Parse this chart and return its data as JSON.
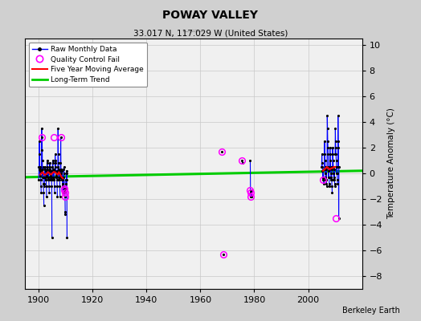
{
  "title": "POWAY VALLEY",
  "subtitle": "33.017 N, 117.029 W (United States)",
  "ylabel": "Temperature Anomaly (°C)",
  "credit": "Berkeley Earth",
  "ylim": [
    -9,
    10.5
  ],
  "xlim": [
    1895,
    2020
  ],
  "xticks": [
    1900,
    1920,
    1940,
    1960,
    1980,
    2000
  ],
  "yticks": [
    -8,
    -6,
    -4,
    -2,
    0,
    2,
    4,
    6,
    8,
    10
  ],
  "bg_color": "#d0d0d0",
  "plot_bg_color": "#f0f0f0",
  "segments_1900s": [
    {
      "x": [
        1900.0,
        1900.083,
        1900.167,
        1900.25,
        1900.333,
        1900.417,
        1900.5,
        1900.583,
        1900.667,
        1900.75,
        1900.833,
        1900.917
      ],
      "y": [
        -0.5,
        0.5,
        0.3,
        2.5,
        1.5,
        0.2,
        -0.2,
        0.3,
        0.5,
        -0.5,
        -1.0,
        -1.5
      ]
    },
    {
      "x": [
        1901.0,
        1901.083,
        1901.167,
        1901.25,
        1901.333,
        1901.417,
        1901.5,
        1901.583,
        1901.667,
        1901.75,
        1901.833,
        1901.917
      ],
      "y": [
        0.2,
        3.5,
        1.8,
        2.8,
        1.0,
        -0.3,
        0.3,
        0.5,
        -0.3,
        -0.8,
        -1.5,
        -2.5
      ]
    },
    {
      "x": [
        1902.0,
        1902.083,
        1902.167,
        1902.25,
        1902.333,
        1902.417,
        1902.5,
        1902.583,
        1902.667,
        1902.75,
        1902.833,
        1902.917
      ],
      "y": [
        -0.8,
        -1.0,
        -0.3,
        0.3,
        0.5,
        -0.3,
        -0.5,
        -0.3,
        0.2,
        -0.5,
        -1.0,
        -1.8
      ]
    },
    {
      "x": [
        1903.0,
        1903.083,
        1903.167,
        1903.25,
        1903.333,
        1903.417,
        1903.5,
        1903.583,
        1903.667,
        1903.75,
        1903.833,
        1903.917
      ],
      "y": [
        -0.2,
        1.0,
        0.8,
        0.5,
        0.3,
        -0.3,
        -0.5,
        -0.3,
        0.2,
        -0.5,
        -1.0,
        -1.5
      ]
    },
    {
      "x": [
        1904.0,
        1904.083,
        1904.167,
        1904.25,
        1904.333,
        1904.417,
        1904.5,
        1904.583,
        1904.667,
        1904.75,
        1904.833,
        1904.917
      ],
      "y": [
        0.0,
        0.8,
        0.5,
        0.3,
        -0.2,
        -0.5,
        -0.3,
        0.2,
        -0.3,
        -0.5,
        -1.0,
        -5.0
      ]
    },
    {
      "x": [
        1905.0,
        1905.083,
        1905.167,
        1905.25,
        1905.333,
        1905.417,
        1905.5,
        1905.583,
        1905.667,
        1905.75,
        1905.833,
        1905.917
      ],
      "y": [
        -0.5,
        0.5,
        1.0,
        0.8,
        0.3,
        -0.3,
        -0.5,
        -0.3,
        0.3,
        -0.5,
        -1.0,
        -1.5
      ]
    },
    {
      "x": [
        1906.0,
        1906.083,
        1906.167,
        1906.25,
        1906.333,
        1906.417,
        1906.5,
        1906.583,
        1906.667,
        1906.75,
        1906.833,
        1906.917
      ],
      "y": [
        0.2,
        1.5,
        1.0,
        0.8,
        0.5,
        0.0,
        -0.3,
        -0.2,
        0.2,
        -0.5,
        -1.0,
        -1.8
      ]
    },
    {
      "x": [
        1907.0,
        1907.083,
        1907.167,
        1907.25,
        1907.333,
        1907.417,
        1907.5,
        1907.583,
        1907.667,
        1907.75,
        1907.833,
        1907.917
      ],
      "y": [
        -0.5,
        0.5,
        3.5,
        1.5,
        0.8,
        0.3,
        -0.3,
        -0.5,
        -0.3,
        0.2,
        -1.0,
        -1.8
      ]
    },
    {
      "x": [
        1908.0,
        1908.083,
        1908.167,
        1908.25,
        1908.333,
        1908.417,
        1908.5,
        1908.583,
        1908.667,
        1908.75,
        1908.833,
        1908.917
      ],
      "y": [
        -0.3,
        0.8,
        2.8,
        0.3,
        0.0,
        -0.3,
        -0.5,
        -0.3,
        0.2,
        -0.5,
        -1.0,
        -1.5
      ]
    },
    {
      "x": [
        1909.0,
        1909.083,
        1909.167,
        1909.25,
        1909.333,
        1909.417,
        1909.5,
        1909.583,
        1909.667,
        1909.75,
        1909.833,
        1909.917
      ],
      "y": [
        -0.8,
        -1.5,
        -0.3,
        0.3,
        0.5,
        0.0,
        -1.2,
        -1.3,
        -1.5,
        -1.8,
        -3.2,
        -3.0
      ]
    },
    {
      "x": [
        1910.0,
        1910.083,
        1910.167,
        1910.25,
        1910.333,
        1910.417,
        1910.5
      ],
      "y": [
        -0.5,
        -0.8,
        -1.2,
        -0.5,
        0.2,
        0.0,
        -5.0
      ]
    }
  ],
  "segments_2000s": [
    {
      "x": [
        2005.0,
        2005.083,
        2005.167,
        2005.25,
        2005.333,
        2005.417,
        2005.5,
        2005.583,
        2005.667,
        2005.75,
        2005.833,
        2005.917
      ],
      "y": [
        0.5,
        1.5,
        0.8,
        0.5,
        0.2,
        -0.3,
        -0.5,
        -0.3,
        0.3,
        -0.3,
        -0.8,
        -0.5
      ]
    },
    {
      "x": [
        2006.0,
        2006.083,
        2006.167,
        2006.25,
        2006.333,
        2006.417,
        2006.5,
        2006.583,
        2006.667,
        2006.75,
        2006.833,
        2006.917
      ],
      "y": [
        0.3,
        2.5,
        1.5,
        1.0,
        0.5,
        0.0,
        -0.3,
        -0.5,
        0.3,
        -0.5,
        -0.8,
        -1.0
      ]
    },
    {
      "x": [
        2007.0,
        2007.083,
        2007.167,
        2007.25,
        2007.333,
        2007.417,
        2007.5,
        2007.583,
        2007.667,
        2007.75,
        2007.833,
        2007.917
      ],
      "y": [
        0.5,
        4.5,
        3.5,
        2.5,
        2.0,
        1.5,
        0.5,
        -0.3,
        0.2,
        -0.3,
        -0.8,
        -1.0
      ]
    },
    {
      "x": [
        2008.0,
        2008.083,
        2008.167,
        2008.25,
        2008.333,
        2008.417,
        2008.5,
        2008.583,
        2008.667,
        2008.75,
        2008.833,
        2008.917
      ],
      "y": [
        0.3,
        2.0,
        1.5,
        1.0,
        0.5,
        0.0,
        -0.5,
        -0.3,
        0.3,
        -0.5,
        -1.0,
        -1.5
      ]
    },
    {
      "x": [
        2009.0,
        2009.083,
        2009.167,
        2009.25,
        2009.333,
        2009.417,
        2009.5,
        2009.583,
        2009.667,
        2009.75,
        2009.833,
        2009.917
      ],
      "y": [
        0.5,
        2.0,
        1.5,
        1.0,
        0.5,
        0.0,
        -0.5,
        -0.3,
        0.3,
        -0.5,
        -0.8,
        -1.0
      ]
    },
    {
      "x": [
        2010.0,
        2010.083,
        2010.167,
        2010.25,
        2010.333,
        2010.417,
        2010.5,
        2010.583,
        2010.667,
        2010.75,
        2010.833,
        2010.917
      ],
      "y": [
        1.5,
        3.5,
        2.5,
        2.0,
        1.5,
        1.0,
        0.5,
        0.0,
        0.5,
        0.0,
        -0.5,
        -0.8
      ]
    },
    {
      "x": [
        2011.0,
        2011.083,
        2011.167,
        2011.25,
        2011.333,
        2011.417
      ],
      "y": [
        0.5,
        4.5,
        2.5,
        2.0,
        -3.5,
        0.5
      ]
    }
  ],
  "isolated_1968": {
    "x": [
      1968.0
    ],
    "y": [
      1.7
    ]
  },
  "isolated_1968b": {
    "x": [
      1968.5
    ],
    "y": [
      -6.3
    ]
  },
  "isolated_1975": {
    "x": [
      1975.5,
      1975.583
    ],
    "y": [
      1.0,
      0.8
    ]
  },
  "isolated_1978": {
    "x": [
      1978.5,
      1978.583,
      1978.667,
      1978.75,
      1979.0,
      1979.083
    ],
    "y": [
      1.0,
      -1.3,
      -1.5,
      -1.8,
      -1.3,
      -1.8
    ]
  },
  "qc_fail_x": [
    1901.25,
    1905.5,
    1908.167,
    1909.5,
    1909.583,
    1909.667,
    1909.75,
    1968.0,
    1968.5,
    1975.5,
    1978.5,
    1978.583,
    1978.667,
    2005.5,
    2010.333
  ],
  "qc_fail_y": [
    2.8,
    2.8,
    2.8,
    -1.2,
    -1.3,
    -1.5,
    -1.8,
    1.7,
    -6.3,
    1.0,
    -1.3,
    -1.5,
    -1.8,
    -0.5,
    -3.5
  ],
  "five_year_x1": [
    1900.5,
    1901.0,
    1901.5,
    1902.0,
    1902.5,
    1903.0,
    1903.5,
    1904.0,
    1904.5,
    1905.0,
    1905.5,
    1906.0,
    1906.5,
    1907.0,
    1907.5,
    1908.0,
    1908.5,
    1909.0
  ],
  "five_year_y1": [
    -0.1,
    0.0,
    0.1,
    -0.1,
    -0.1,
    -0.0,
    0.1,
    0.0,
    -0.1,
    0.0,
    0.1,
    0.1,
    0.0,
    -0.1,
    0.1,
    -0.1,
    -0.3,
    -0.4
  ],
  "five_year_x2": [
    2005.5,
    2006.0,
    2006.5,
    2007.0,
    2007.5,
    2008.0,
    2008.5,
    2009.0,
    2009.5,
    2010.0
  ],
  "five_year_y2": [
    0.2,
    0.3,
    0.4,
    0.5,
    0.4,
    0.3,
    0.4,
    0.4,
    0.5,
    0.5
  ],
  "trend_x": [
    1895,
    2020
  ],
  "trend_y": [
    -0.3,
    0.2
  ]
}
